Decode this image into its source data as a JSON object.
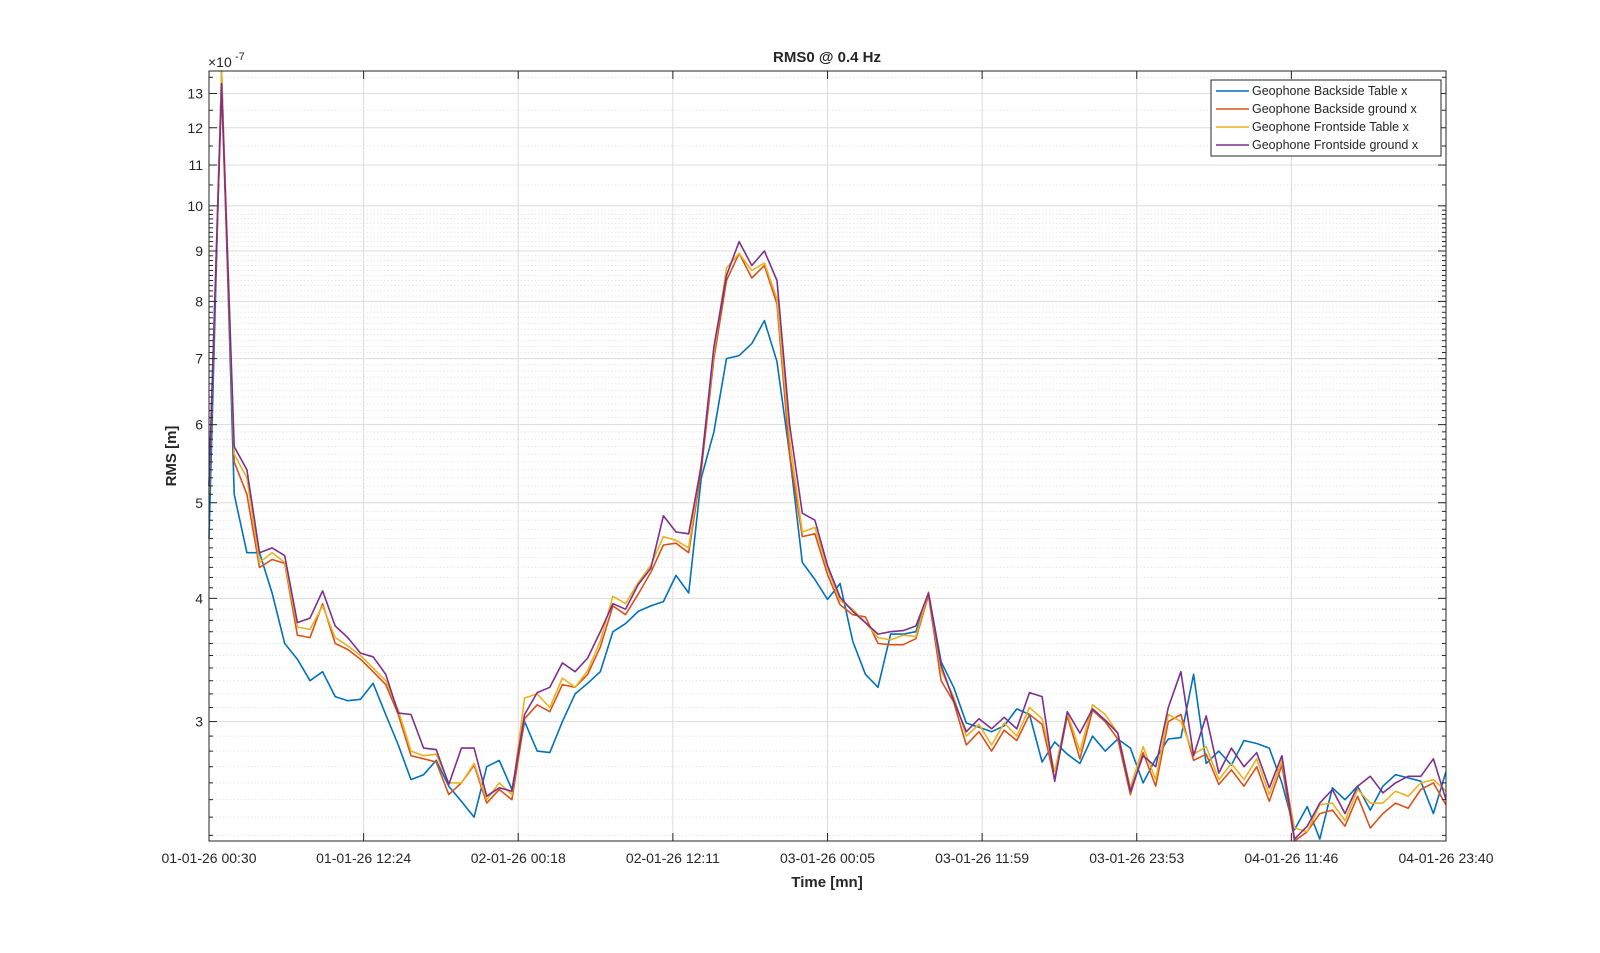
{
  "chart_data": {
    "type": "line",
    "title": "RMS0 @ 0.4 Hz",
    "xlabel": "Time [mn]",
    "ylabel": "RMS [m]",
    "y_exponent_label": "×10",
    "y_exponent_power": "-7",
    "y_scale": "log",
    "ylim": [
      2.27,
      13.7
    ],
    "y_major_ticks": [
      3,
      4,
      5,
      6,
      7,
      8,
      9,
      10,
      11,
      12,
      13
    ],
    "y_minor_ticks": [
      2.3,
      2.4,
      2.5,
      2.6,
      2.7,
      2.8,
      2.9,
      3.1,
      3.2,
      3.3,
      3.4,
      3.5,
      3.6,
      3.7,
      3.8,
      3.9,
      4.1,
      4.2,
      4.3,
      4.4,
      4.5,
      4.6,
      4.7,
      4.8,
      4.9,
      5.1,
      5.2,
      5.3,
      5.4,
      5.5,
      5.6,
      5.7,
      5.8,
      5.9,
      6.1,
      6.2,
      6.3,
      6.4,
      6.5,
      6.6,
      6.7,
      6.8,
      6.9,
      7.1,
      7.2,
      7.3,
      7.4,
      7.5,
      7.6,
      7.7,
      7.8,
      7.9,
      8.1,
      8.2,
      8.3,
      8.4,
      8.5,
      8.6,
      8.7,
      8.8,
      8.9,
      9.1,
      9.2,
      9.3,
      9.4,
      9.5,
      9.6,
      9.7,
      9.8,
      9.9,
      10.5,
      11.5,
      12.5,
      13.5
    ],
    "xlim": [
      "01-01-26 00:30",
      "04-01-26 23:40"
    ],
    "x_tick_labels": [
      "01-01-26 00:30",
      "01-01-26 12:24",
      "02-01-26 00:18",
      "02-01-26 12:11",
      "03-01-26 00:05",
      "03-01-26 11:59",
      "03-01-26 23:53",
      "04-01-26 11:46",
      "04-01-26 23:40"
    ],
    "grid": true,
    "minor_grid": true,
    "legend_position": "top-right",
    "series": [
      {
        "name": "Geophone Backside Table x",
        "color": "#0072BD",
        "values": [
          4.6,
          13.7,
          5.1,
          4.45,
          4.45,
          4.05,
          3.6,
          3.47,
          3.3,
          3.37,
          3.18,
          3.15,
          3.16,
          3.28,
          3.05,
          2.84,
          2.62,
          2.65,
          2.74,
          2.58,
          2.49,
          2.4,
          2.7,
          2.74,
          2.56,
          3.0,
          2.8,
          2.79,
          3.0,
          3.2,
          3.28,
          3.37,
          3.7,
          3.77,
          3.88,
          3.93,
          3.97,
          4.22,
          4.05,
          5.3,
          5.9,
          7.0,
          7.05,
          7.25,
          7.65,
          6.95,
          5.6,
          4.35,
          4.18,
          3.99,
          4.14,
          3.62,
          3.35,
          3.25,
          3.68,
          3.68,
          3.7,
          4.05,
          3.45,
          3.25,
          2.99,
          2.96,
          2.93,
          2.97,
          3.09,
          3.05,
          2.73,
          2.86,
          2.78,
          2.72,
          2.9,
          2.8,
          2.88,
          2.82,
          2.6,
          2.75,
          2.88,
          2.89,
          3.35,
          2.72,
          2.8,
          2.71,
          2.87,
          2.85,
          2.82,
          2.6,
          2.33,
          2.46,
          2.28,
          2.57,
          2.5,
          2.58,
          2.44,
          2.58,
          2.65,
          2.63,
          2.61,
          2.42,
          2.67
        ]
      },
      {
        "name": "Geophone Backside ground x",
        "color": "#D95319",
        "values": [
          5.2,
          13.1,
          5.5,
          5.1,
          4.3,
          4.38,
          4.34,
          3.67,
          3.65,
          3.95,
          3.6,
          3.55,
          3.47,
          3.37,
          3.27,
          3.05,
          2.77,
          2.75,
          2.73,
          2.53,
          2.6,
          2.71,
          2.48,
          2.56,
          2.5,
          3.02,
          3.12,
          3.07,
          3.27,
          3.25,
          3.35,
          3.57,
          3.93,
          3.85,
          4.04,
          4.25,
          4.53,
          4.55,
          4.45,
          5.4,
          7.0,
          8.4,
          8.95,
          8.45,
          8.7,
          7.95,
          5.6,
          4.62,
          4.65,
          4.23,
          3.94,
          3.85,
          3.83,
          3.6,
          3.59,
          3.59,
          3.64,
          4.03,
          3.3,
          3.14,
          2.84,
          2.93,
          2.8,
          2.94,
          2.87,
          3.05,
          2.98,
          2.62,
          3.04,
          2.75,
          3.08,
          3.0,
          2.88,
          2.53,
          2.79,
          2.58,
          3.0,
          3.05,
          2.74,
          2.78,
          2.59,
          2.68,
          2.58,
          2.7,
          2.49,
          2.71,
          2.26,
          2.32,
          2.42,
          2.44,
          2.35,
          2.52,
          2.34,
          2.42,
          2.48,
          2.45,
          2.56,
          2.6,
          2.47
        ]
      },
      {
        "name": "Geophone Frontside Table x",
        "color": "#EDB120",
        "values": [
          5.1,
          13.7,
          5.6,
          5.3,
          4.35,
          4.45,
          4.35,
          3.74,
          3.72,
          3.93,
          3.65,
          3.58,
          3.5,
          3.4,
          3.3,
          3.08,
          2.8,
          2.77,
          2.78,
          2.6,
          2.6,
          2.72,
          2.5,
          2.6,
          2.53,
          3.17,
          3.2,
          3.1,
          3.32,
          3.25,
          3.38,
          3.62,
          4.02,
          3.95,
          4.15,
          4.32,
          4.62,
          4.58,
          4.5,
          5.5,
          7.1,
          8.65,
          8.95,
          8.6,
          8.75,
          8.05,
          5.8,
          4.67,
          4.72,
          4.29,
          3.98,
          3.9,
          3.78,
          3.65,
          3.63,
          3.67,
          3.66,
          4.06,
          3.38,
          3.18,
          2.9,
          2.98,
          2.84,
          2.99,
          2.9,
          3.1,
          3.02,
          2.67,
          3.06,
          2.8,
          3.12,
          3.05,
          2.92,
          2.57,
          2.83,
          2.62,
          3.05,
          3.0,
          2.78,
          2.83,
          2.62,
          2.72,
          2.62,
          2.75,
          2.53,
          2.74,
          2.34,
          2.32,
          2.47,
          2.48,
          2.38,
          2.56,
          2.48,
          2.48,
          2.55,
          2.52,
          2.6,
          2.62,
          2.55
        ]
      },
      {
        "name": "Geophone Frontside ground x",
        "color": "#7E2F8E",
        "values": [
          5.2,
          13.3,
          5.7,
          5.4,
          4.45,
          4.5,
          4.42,
          3.78,
          3.82,
          4.07,
          3.75,
          3.65,
          3.52,
          3.49,
          3.35,
          3.06,
          3.05,
          2.82,
          2.81,
          2.59,
          2.82,
          2.82,
          2.52,
          2.57,
          2.55,
          3.05,
          3.21,
          3.25,
          3.44,
          3.37,
          3.48,
          3.7,
          3.95,
          3.9,
          4.13,
          4.29,
          4.85,
          4.67,
          4.65,
          5.45,
          7.2,
          8.5,
          9.2,
          8.7,
          9.0,
          8.4,
          6.0,
          4.88,
          4.8,
          4.32,
          4.01,
          3.88,
          3.78,
          3.68,
          3.7,
          3.71,
          3.75,
          4.05,
          3.42,
          3.15,
          2.93,
          3.02,
          2.95,
          3.03,
          2.95,
          3.21,
          3.18,
          2.61,
          3.07,
          2.92,
          3.09,
          3.01,
          2.92,
          2.55,
          2.77,
          2.7,
          3.1,
          3.37,
          2.77,
          3.04,
          2.66,
          2.82,
          2.7,
          2.79,
          2.57,
          2.77,
          2.28,
          2.35,
          2.48,
          2.56,
          2.42,
          2.58,
          2.64,
          2.54,
          2.6,
          2.64,
          2.64,
          2.75,
          2.5
        ]
      }
    ]
  }
}
